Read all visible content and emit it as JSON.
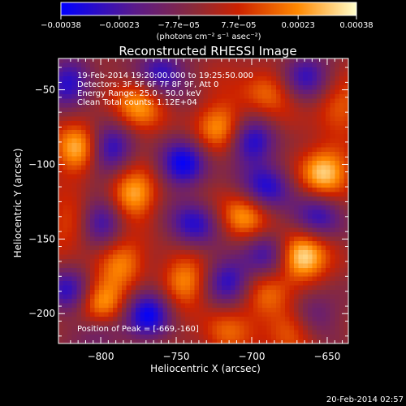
{
  "chart_data": {
    "type": "heatmap",
    "title": "Reconstructed RHESSI Image",
    "xlabel": "Heliocentric X (arcsec)",
    "ylabel": "Heliocentric Y (arcsec)",
    "xlim": [
      -828,
      -636
    ],
    "ylim": [
      -220,
      -29
    ],
    "x_ticks": [
      -800,
      -750,
      -700,
      -650
    ],
    "y_ticks": [
      -50,
      -100,
      -150,
      -200
    ],
    "x_tick_labels": [
      "−800",
      "−750",
      "−700",
      "−650"
    ],
    "y_tick_labels": [
      "−50",
      "−100",
      "−150",
      "−200"
    ],
    "info_lines": [
      "19-Feb-2014 19:20:00.000 to 19:25:50.000",
      "Detectors: 3F 5F 6F 7F 8F 9F, Att 0",
      "Energy Range: 25.0 - 50.0 keV",
      "Clean     Total counts: 1.12E+04"
    ],
    "peak_text": "Position of Peak = [-669,-160]",
    "peak_position": [
      -669,
      -160
    ],
    "colorbar": {
      "range": [
        -0.00038,
        0.00038
      ],
      "tick_values": [
        -0.00038,
        -0.00023,
        -7.7e-05,
        7.7e-05,
        0.00023,
        0.00038
      ],
      "tick_labels": [
        "−0.00038",
        "−0.00023",
        "−7.7e−05",
        "7.7e−05",
        "0.00023",
        "0.00038"
      ],
      "units": "(photons cm⁻² s⁻¹ asec⁻²)",
      "colors": [
        "#0000ff",
        "#5a1a8a",
        "#8a2a3a",
        "#cc2200",
        "#ff8800",
        "#ffffcc"
      ]
    },
    "sources": [
      {
        "x": -800,
        "y": -195,
        "value": 0.00035
      },
      {
        "x": -668,
        "y": -162,
        "value": 0.00038
      },
      {
        "x": -653,
        "y": -105,
        "value": 0.00033
      },
      {
        "x": -814,
        "y": -90,
        "value": 0.0003
      },
      {
        "x": -779,
        "y": -120,
        "value": 0.00028
      },
      {
        "x": -776,
        "y": -60,
        "value": 0.00024
      },
      {
        "x": -706,
        "y": -135,
        "value": 0.00026
      },
      {
        "x": -720,
        "y": -75,
        "value": 0.00024
      },
      {
        "x": -744,
        "y": -178,
        "value": 0.00023
      },
      {
        "x": -674,
        "y": -210,
        "value": 0.0002
      },
      {
        "x": -786,
        "y": -165,
        "value": 0.0002
      },
      {
        "x": -690,
        "y": -50,
        "value": 0.00018
      },
      {
        "x": -643,
        "y": -60,
        "value": 0.00016
      },
      {
        "x": -718,
        "y": -212,
        "value": 0.00015
      },
      {
        "x": -816,
        "y": -140,
        "value": 0.00017
      },
      {
        "x": -690,
        "y": -188,
        "value": 0.00018
      }
    ],
    "dips": [
      {
        "x": -820,
        "y": -45,
        "value": -0.0003
      },
      {
        "x": -795,
        "y": -90,
        "value": -0.00032
      },
      {
        "x": -760,
        "y": -38,
        "value": -0.0003
      },
      {
        "x": -745,
        "y": -100,
        "value": -0.00034
      },
      {
        "x": -700,
        "y": -85,
        "value": -0.0003
      },
      {
        "x": -665,
        "y": -40,
        "value": -0.00028
      },
      {
        "x": -738,
        "y": -140,
        "value": -0.0003
      },
      {
        "x": -690,
        "y": -115,
        "value": -0.00032
      },
      {
        "x": -800,
        "y": -138,
        "value": -0.0003
      },
      {
        "x": -768,
        "y": -200,
        "value": -0.00034
      },
      {
        "x": -715,
        "y": -178,
        "value": -0.00028
      },
      {
        "x": -655,
        "y": -135,
        "value": -0.00026
      },
      {
        "x": -690,
        "y": -160,
        "value": -0.00027
      },
      {
        "x": -660,
        "y": -200,
        "value": -0.00022
      },
      {
        "x": -822,
        "y": -185,
        "value": -0.00028
      },
      {
        "x": -800,
        "y": -210,
        "value": -0.00024
      }
    ]
  },
  "timestamp": "20-Feb-2014 02:57"
}
